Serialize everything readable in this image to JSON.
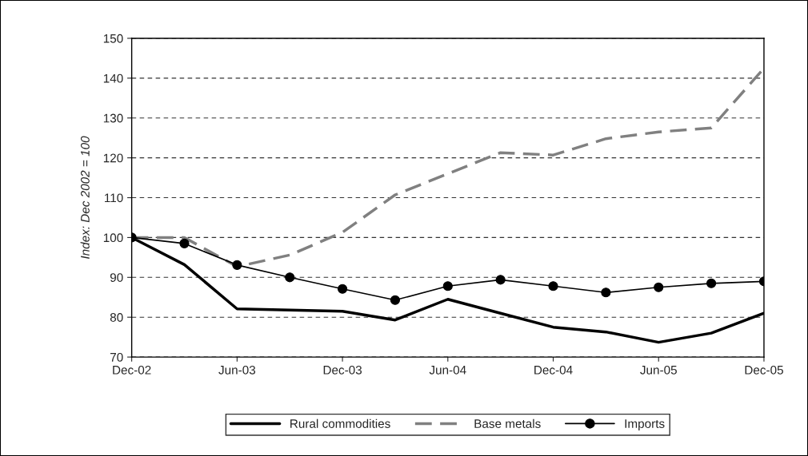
{
  "chart_data": {
    "type": "line",
    "ylabel": "Index: Dec 2002 = 100",
    "categories": [
      "Dec-02",
      null,
      "Jun-03",
      null,
      "Dec-03",
      null,
      "Jun-04",
      null,
      "Dec-04",
      null,
      "Jun-05",
      null,
      "Dec-05"
    ],
    "series": [
      {
        "name": "Rural commodities",
        "color": "#000000",
        "line_style": "solid",
        "marker": "none",
        "values": [
          100,
          93.2,
          82.1,
          81.8,
          81.5,
          79.3,
          84.5,
          81.0,
          77.5,
          76.3,
          73.7,
          76.0,
          81.0
        ]
      },
      {
        "name": "Base metals",
        "color": "#808080",
        "line_style": "dashed",
        "marker": "none",
        "values": [
          100,
          100,
          92.7,
          95.6,
          101.3,
          110.7,
          116,
          121.3,
          120.7,
          124.8,
          126.5,
          127.5,
          142.5
        ]
      },
      {
        "name": "Imports",
        "color": "#000000",
        "line_style": "solid",
        "marker": "circle",
        "values": [
          100,
          98.5,
          93.1,
          90,
          87.1,
          84.3,
          87.8,
          89.4,
          87.8,
          86.2,
          87.5,
          88.5,
          89.0
        ]
      }
    ],
    "ylim": [
      70,
      150
    ],
    "yticks": [
      70,
      80,
      90,
      100,
      110,
      120,
      130,
      140,
      150
    ],
    "grid": "y",
    "legend": "bottom"
  }
}
